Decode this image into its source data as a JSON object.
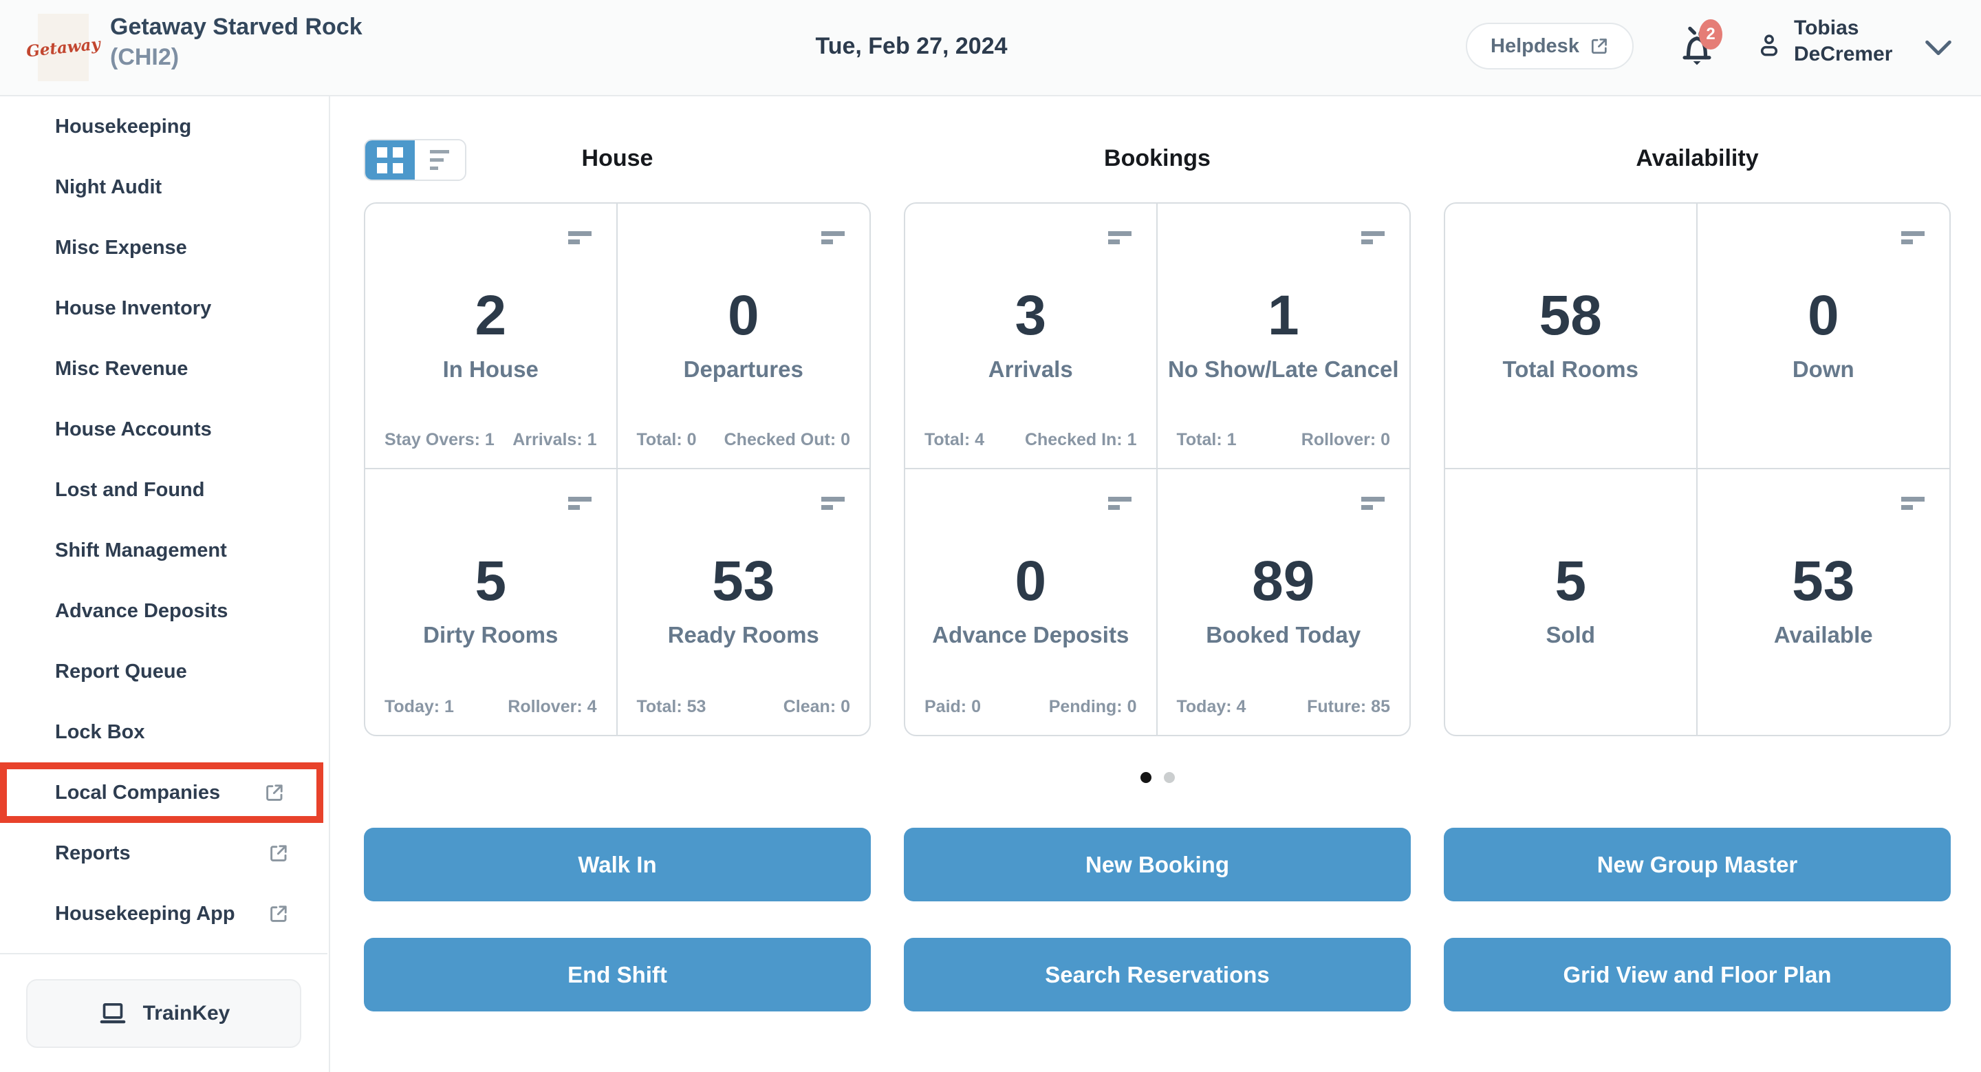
{
  "colors": {
    "accent_blue": "#4c98cb",
    "highlight_red": "#e8422b",
    "badge_red": "#e57d76",
    "dark_text": "#2c3a49",
    "muted_label": "#66798c"
  },
  "header": {
    "logo_text": "Getaway",
    "property_name": "Getaway Starved Rock",
    "property_code": "(CHI2)",
    "date": "Tue, Feb 27, 2024",
    "helpdesk_label": "Helpdesk",
    "notification_count": "2",
    "user_first_name": "Tobias",
    "user_last_name": "DeCremer"
  },
  "sidebar": {
    "items": [
      {
        "label": "Housekeeping",
        "external": false,
        "highlighted": false
      },
      {
        "label": "Night Audit",
        "external": false,
        "highlighted": false
      },
      {
        "label": "Misc Expense",
        "external": false,
        "highlighted": false
      },
      {
        "label": "House Inventory",
        "external": false,
        "highlighted": false
      },
      {
        "label": "Misc Revenue",
        "external": false,
        "highlighted": false
      },
      {
        "label": "House Accounts",
        "external": false,
        "highlighted": false
      },
      {
        "label": "Lost and Found",
        "external": false,
        "highlighted": false
      },
      {
        "label": "Shift Management",
        "external": false,
        "highlighted": false
      },
      {
        "label": "Advance Deposits",
        "external": false,
        "highlighted": false
      },
      {
        "label": "Report Queue",
        "external": false,
        "highlighted": false
      },
      {
        "label": "Lock Box",
        "external": false,
        "highlighted": false
      },
      {
        "label": "Local Companies",
        "external": true,
        "highlighted": true
      },
      {
        "label": "Reports",
        "external": true,
        "highlighted": false
      },
      {
        "label": "Housekeeping App",
        "external": true,
        "highlighted": false
      }
    ],
    "trainkey_label": "TrainKey"
  },
  "dashboard": {
    "view_toggle": {
      "active": "grid"
    },
    "sections": [
      {
        "title": "House",
        "cards": [
          {
            "value": "2",
            "label": "In House",
            "stat_left": "Stay Overs: 1",
            "stat_right": "Arrivals: 1",
            "menu_icon": true
          },
          {
            "value": "0",
            "label": "Departures",
            "stat_left": "Total: 0",
            "stat_right": "Checked Out: 0",
            "menu_icon": true
          },
          {
            "value": "5",
            "label": "Dirty Rooms",
            "stat_left": "Today: 1",
            "stat_right": "Rollover: 4",
            "menu_icon": true
          },
          {
            "value": "53",
            "label": "Ready Rooms",
            "stat_left": "Total: 53",
            "stat_right": "Clean: 0",
            "menu_icon": true
          }
        ]
      },
      {
        "title": "Bookings",
        "cards": [
          {
            "value": "3",
            "label": "Arrivals",
            "stat_left": "Total: 4",
            "stat_right": "Checked In: 1",
            "menu_icon": true
          },
          {
            "value": "1",
            "label": "No Show/Late Cancel",
            "stat_left": "Total: 1",
            "stat_right": "Rollover: 0",
            "menu_icon": true
          },
          {
            "value": "0",
            "label": "Advance Deposits",
            "stat_left": "Paid: 0",
            "stat_right": "Pending: 0",
            "menu_icon": true
          },
          {
            "value": "89",
            "label": "Booked Today",
            "stat_left": "Today: 4",
            "stat_right": "Future: 85",
            "menu_icon": true
          }
        ]
      },
      {
        "title": "Availability",
        "cards": [
          {
            "value": "58",
            "label": "Total Rooms",
            "menu_icon": false
          },
          {
            "value": "0",
            "label": "Down",
            "menu_icon": true
          },
          {
            "value": "5",
            "label": "Sold",
            "menu_icon": false
          },
          {
            "value": "53",
            "label": "Available",
            "menu_icon": true
          }
        ]
      }
    ],
    "pagination": {
      "total_pages": 2,
      "active_page": 1
    },
    "actions": [
      [
        "Walk In",
        "New Booking",
        "New Group Master"
      ],
      [
        "End Shift",
        "Search Reservations",
        "Grid View and Floor Plan"
      ]
    ]
  }
}
